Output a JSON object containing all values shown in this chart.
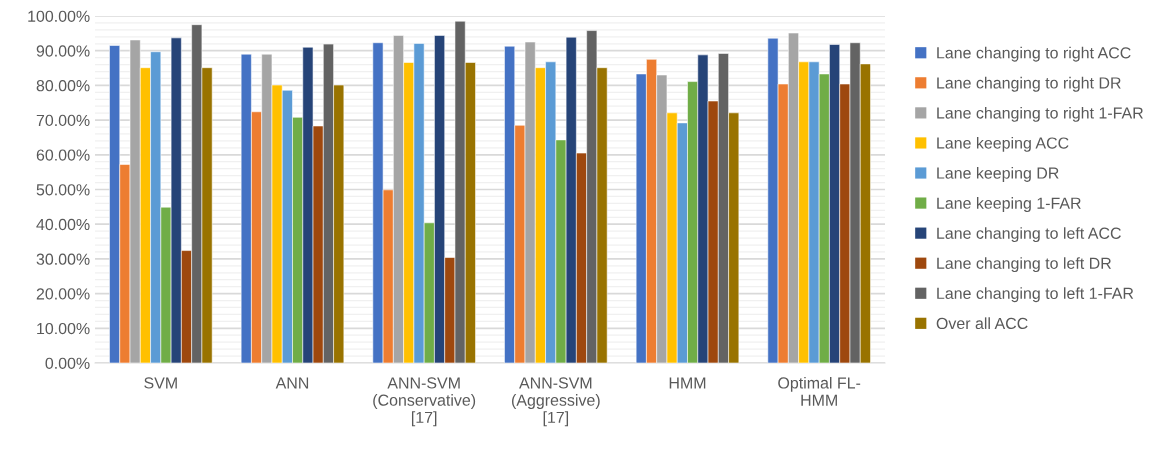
{
  "chart_data": {
    "type": "bar",
    "categories": [
      "SVM",
      "ANN",
      "ANN-SVM\n(Conservative)\n[17]",
      "ANN-SVM\n(Aggressive)\n[17]",
      "HMM",
      "Optimal FL-\nHMM"
    ],
    "series": [
      {
        "name": "Lane changing to right ACC",
        "color": "#4472c4",
        "values": [
          91.5,
          89.0,
          92.3,
          91.3,
          83.3,
          93.6
        ]
      },
      {
        "name": "Lane changing to right DR",
        "color": "#ed7d31",
        "values": [
          57.2,
          72.4,
          49.9,
          68.5,
          87.5,
          80.4
        ]
      },
      {
        "name": "Lane changing to right 1-FAR",
        "color": "#a5a5a5",
        "values": [
          93.1,
          89.0,
          94.4,
          92.5,
          83.0,
          95.1
        ]
      },
      {
        "name": "Lane keeping ACC",
        "color": "#ffc000",
        "values": [
          85.1,
          80.1,
          86.6,
          85.1,
          72.1,
          86.8
        ]
      },
      {
        "name": "Lane keeping DR",
        "color": "#5b9bd5",
        "values": [
          89.7,
          78.6,
          92.1,
          86.8,
          69.2,
          86.8
        ]
      },
      {
        "name": "Lane keeping 1-FAR",
        "color": "#70ad47",
        "values": [
          44.9,
          70.8,
          40.4,
          64.3,
          81.1,
          83.3
        ]
      },
      {
        "name": "Lane changing to left ACC",
        "color": "#264478",
        "values": [
          93.7,
          91.0,
          94.4,
          93.9,
          88.8,
          91.8
        ]
      },
      {
        "name": "Lane changing to left DR",
        "color": "#9e480e",
        "values": [
          32.4,
          68.3,
          30.4,
          60.5,
          75.5,
          80.4
        ]
      },
      {
        "name": "Lane changing to left 1-FAR",
        "color": "#636363",
        "values": [
          97.5,
          91.9,
          98.5,
          95.8,
          89.2,
          92.3
        ]
      },
      {
        "name": "Over all ACC",
        "color": "#997300",
        "values": [
          85.1,
          80.1,
          86.6,
          85.1,
          72.1,
          86.2
        ]
      }
    ],
    "ylim": [
      0,
      100
    ],
    "yticks": [
      {
        "value": 0,
        "label": "0.00%"
      },
      {
        "value": 2,
        "label": null
      },
      {
        "value": 4,
        "label": null
      },
      {
        "value": 6,
        "label": null
      },
      {
        "value": 8,
        "label": null
      },
      {
        "value": 10,
        "label": "10.00%"
      },
      {
        "value": 12,
        "label": null
      },
      {
        "value": 14,
        "label": null
      },
      {
        "value": 16,
        "label": null
      },
      {
        "value": 18,
        "label": null
      },
      {
        "value": 20,
        "label": "20.00%"
      },
      {
        "value": 22,
        "label": null
      },
      {
        "value": 24,
        "label": null
      },
      {
        "value": 26,
        "label": null
      },
      {
        "value": 28,
        "label": null
      },
      {
        "value": 30,
        "label": "30.00%"
      },
      {
        "value": 32,
        "label": null
      },
      {
        "value": 34,
        "label": null
      },
      {
        "value": 36,
        "label": null
      },
      {
        "value": 38,
        "label": null
      },
      {
        "value": 40,
        "label": "40.00%"
      },
      {
        "value": 42,
        "label": null
      },
      {
        "value": 44,
        "label": null
      },
      {
        "value": 46,
        "label": null
      },
      {
        "value": 48,
        "label": null
      },
      {
        "value": 50,
        "label": "50.00%"
      },
      {
        "value": 52,
        "label": null
      },
      {
        "value": 54,
        "label": null
      },
      {
        "value": 56,
        "label": null
      },
      {
        "value": 58,
        "label": null
      },
      {
        "value": 60,
        "label": "60.00%"
      },
      {
        "value": 62,
        "label": null
      },
      {
        "value": 64,
        "label": null
      },
      {
        "value": 66,
        "label": null
      },
      {
        "value": 68,
        "label": null
      },
      {
        "value": 70,
        "label": "70.00%"
      },
      {
        "value": 72,
        "label": null
      },
      {
        "value": 74,
        "label": null
      },
      {
        "value": 76,
        "label": null
      },
      {
        "value": 78,
        "label": null
      },
      {
        "value": 80,
        "label": "80.00%"
      },
      {
        "value": 82,
        "label": null
      },
      {
        "value": 84,
        "label": null
      },
      {
        "value": 86,
        "label": null
      },
      {
        "value": 88,
        "label": null
      },
      {
        "value": 90,
        "label": "90.00%"
      },
      {
        "value": 92,
        "label": null
      },
      {
        "value": 94,
        "label": null
      },
      {
        "value": 96,
        "label": null
      },
      {
        "value": 98,
        "label": null
      },
      {
        "value": 100,
        "label": "100.00%"
      }
    ],
    "grid": "y",
    "legend": "right"
  }
}
